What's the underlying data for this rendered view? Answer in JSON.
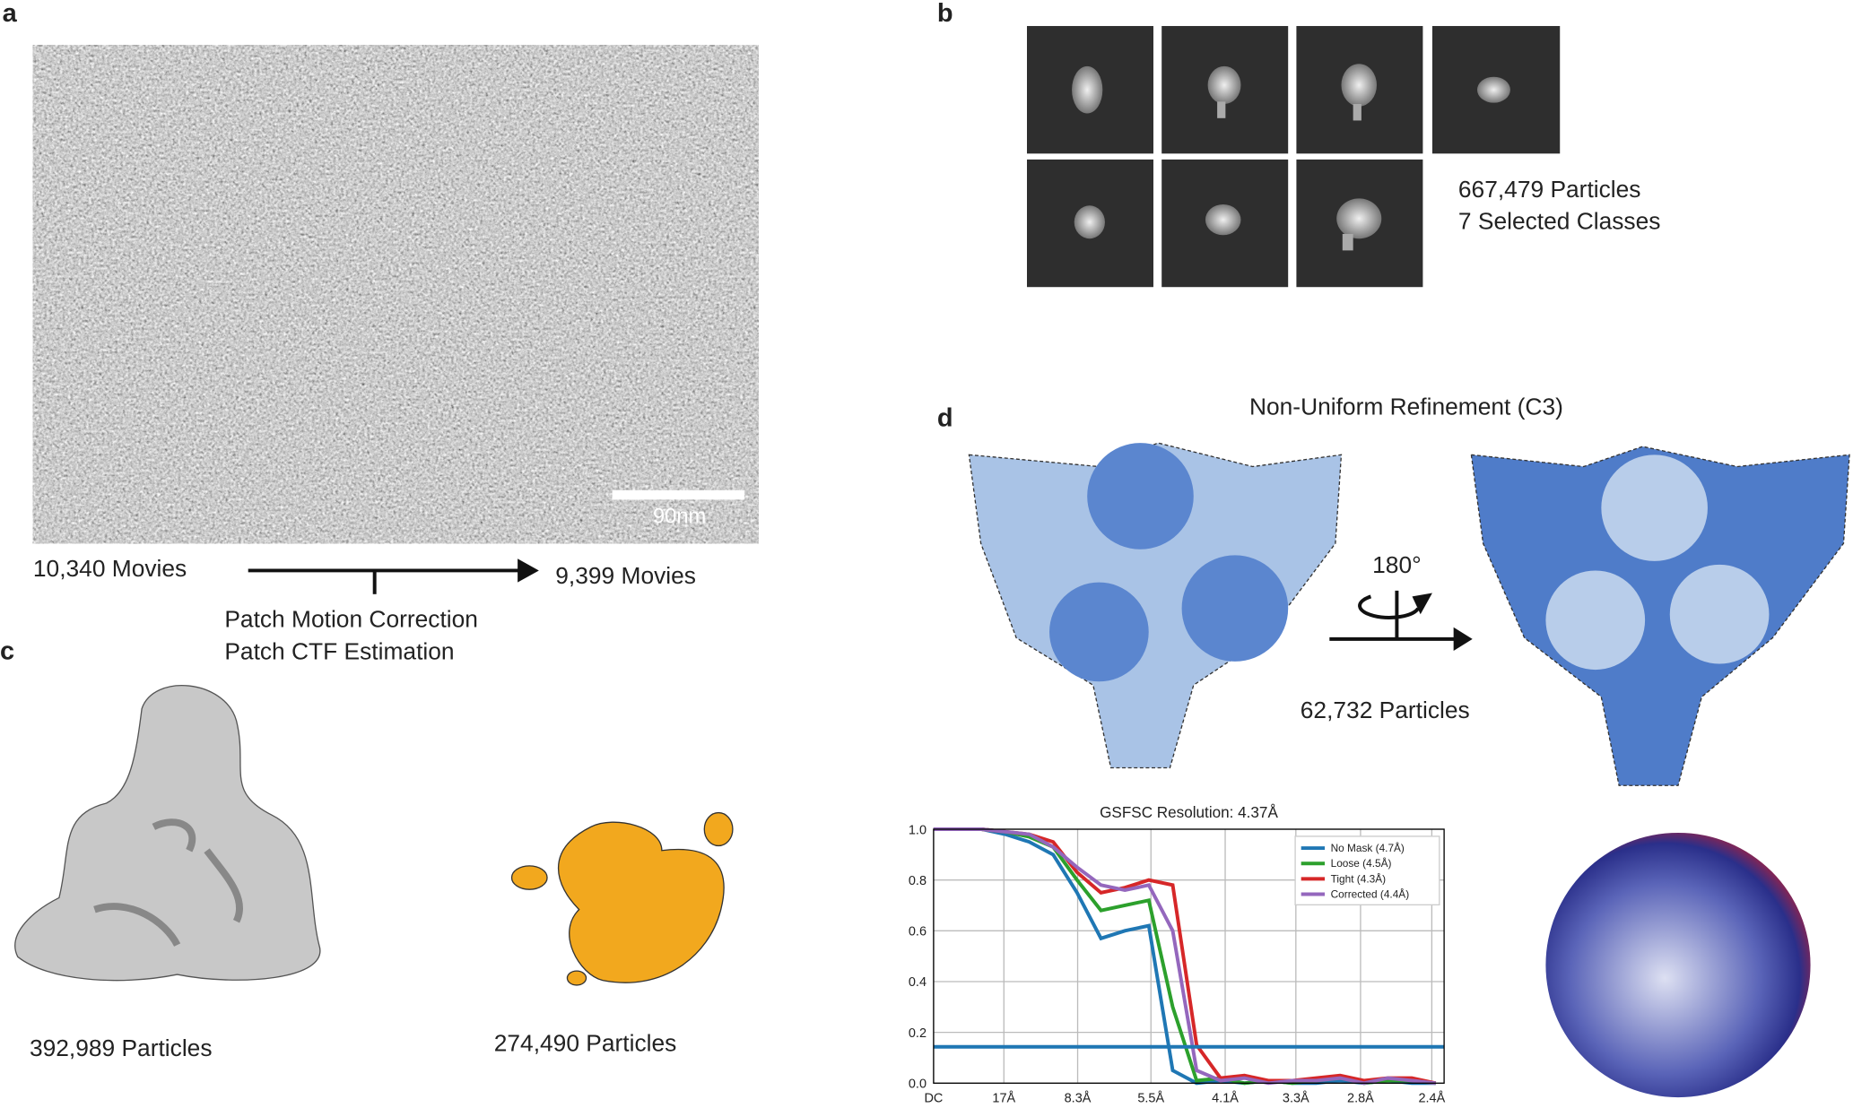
{
  "panel_a": {
    "label": "a",
    "scale_bar": "90nm",
    "input": "10,340 Movies",
    "output": "9,399 Movies",
    "steps": [
      "Patch Motion Correction",
      "Patch CTF Estimation"
    ]
  },
  "panel_b": {
    "label": "b",
    "particles": "667,479 Particles",
    "classes": "7 Selected Classes"
  },
  "panel_c": {
    "label": "c",
    "maps": [
      "392,989 Particles",
      "274,490 Particles"
    ]
  },
  "panel_d": {
    "label": "d",
    "title": "Non-Uniform Refinement (C3)",
    "rotation": "180°",
    "particles": "62,732 Particles"
  },
  "chart_data": {
    "type": "line",
    "title": "GSFSC Resolution: 4.37Å",
    "x": [
      0,
      0.02,
      0.04,
      0.06,
      0.08,
      0.1,
      0.12,
      0.14,
      0.16,
      0.18,
      0.2,
      0.22,
      0.24,
      0.26,
      0.28,
      0.3,
      0.32,
      0.34,
      0.36,
      0.38,
      0.4,
      0.42
    ],
    "series": [
      {
        "name": "No Mask (4.7Å)",
        "color": "#1f77b4",
        "values": [
          1,
          1,
          1,
          0.98,
          0.95,
          0.9,
          0.75,
          0.57,
          0.6,
          0.62,
          0.05,
          0,
          0.01,
          0,
          0.01,
          0,
          0,
          0.01,
          0,
          0.01,
          0,
          0
        ]
      },
      {
        "name": "Loose (4.5Å)",
        "color": "#2ca02c",
        "values": [
          1,
          1,
          1,
          0.99,
          0.97,
          0.93,
          0.8,
          0.68,
          0.7,
          0.72,
          0.3,
          0.01,
          0.02,
          0,
          0.01,
          0,
          0.01,
          0.02,
          0,
          0.01,
          0.01,
          0
        ]
      },
      {
        "name": "Tight (4.3Å)",
        "color": "#d62728",
        "values": [
          1,
          1,
          1,
          0.99,
          0.98,
          0.95,
          0.83,
          0.75,
          0.77,
          0.8,
          0.78,
          0.15,
          0.02,
          0.03,
          0.01,
          0.01,
          0.02,
          0.03,
          0.01,
          0.02,
          0.02,
          0
        ]
      },
      {
        "name": "Corrected (4.4Å)",
        "color": "#9467bd",
        "values": [
          1,
          1,
          1,
          0.99,
          0.98,
          0.93,
          0.85,
          0.78,
          0.76,
          0.78,
          0.6,
          0.05,
          0.01,
          0.02,
          0,
          0.01,
          0.01,
          0.02,
          0,
          0.02,
          0.01,
          0
        ]
      }
    ],
    "threshold": 0.143,
    "threshold_color": "#1f77b4",
    "xlim": [
      0,
      0.427
    ],
    "xticks": [
      {
        "value": 0,
        "label": "DC"
      },
      {
        "value": 0.0588,
        "label": "17Å"
      },
      {
        "value": 0.1205,
        "label": "8.3Å"
      },
      {
        "value": 0.1818,
        "label": "5.5Å"
      },
      {
        "value": 0.2439,
        "label": "4.1Å"
      },
      {
        "value": 0.303,
        "label": "3.3Å"
      },
      {
        "value": 0.3571,
        "label": "2.8Å"
      },
      {
        "value": 0.4167,
        "label": "2.4Å"
      }
    ],
    "ylim": [
      0,
      1
    ],
    "yticks": [
      {
        "value": 0,
        "label": "0.0"
      },
      0.2,
      0.4,
      0.6,
      0.8,
      {
        "value": 1,
        "label": "1.0"
      }
    ],
    "grid": true,
    "legend": "upper right"
  }
}
